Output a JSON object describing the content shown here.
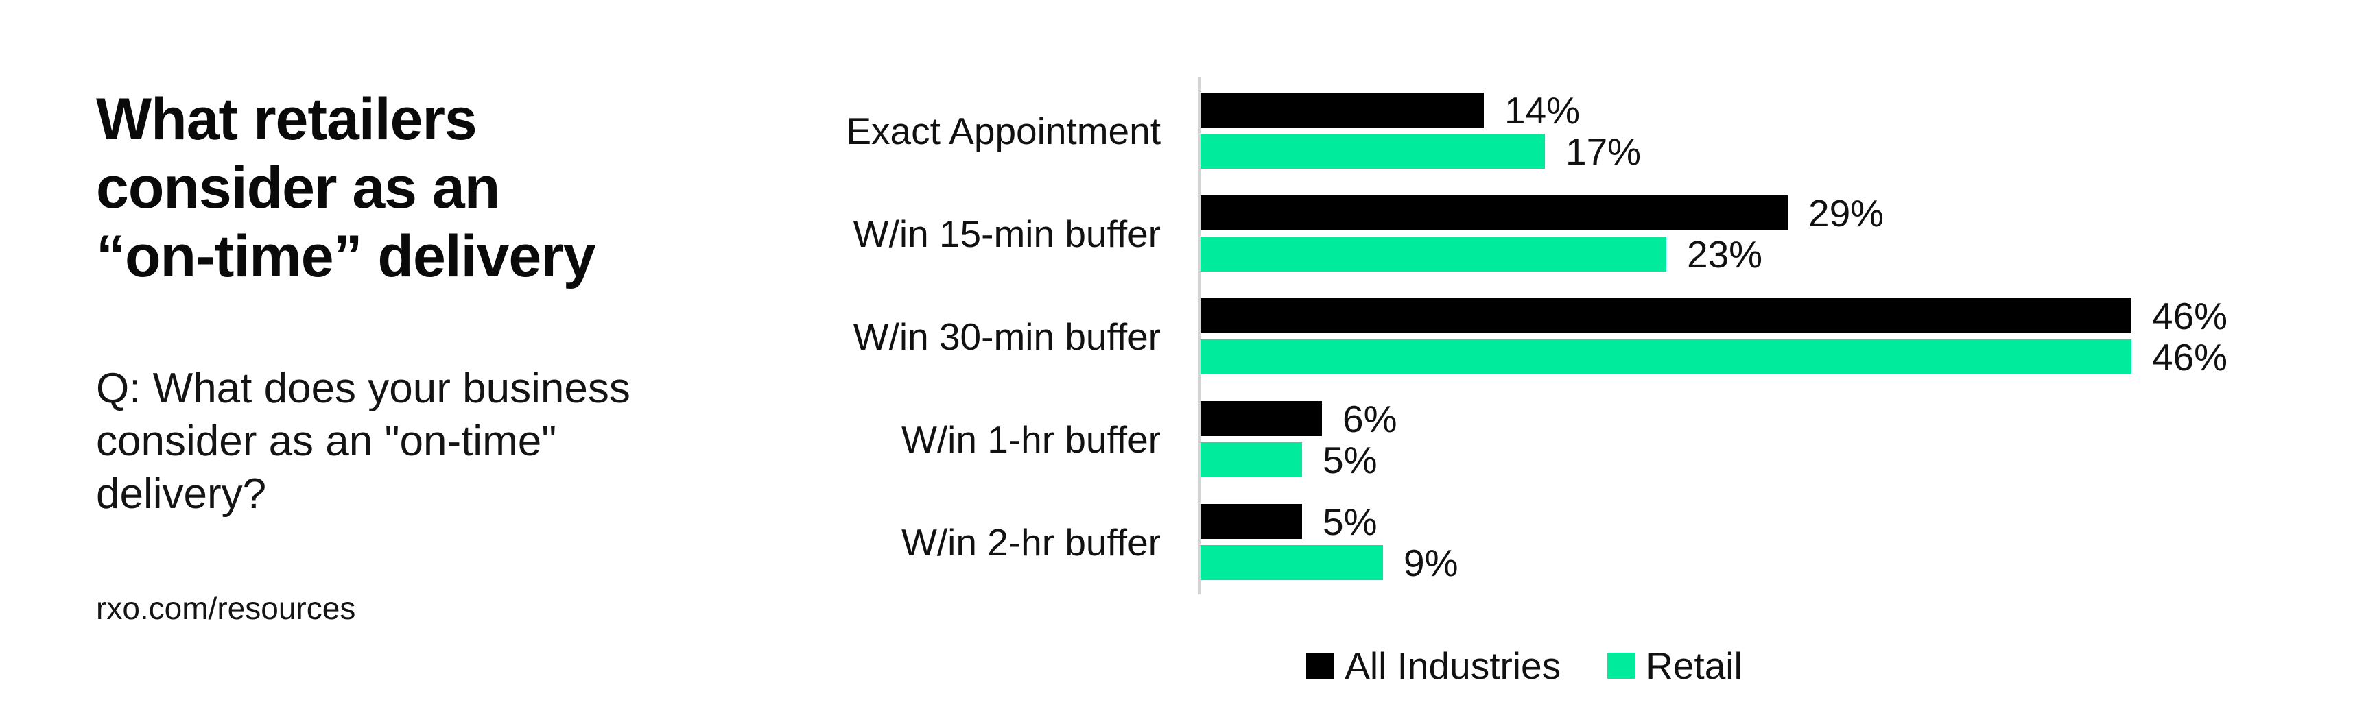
{
  "panel": {
    "title": "What retailers\nconsider as an\n“on-time” delivery",
    "subtitle": "Q: What does your business\nconsider as an \"on-time\"\ndelivery?",
    "footer": "rxo.com/resources"
  },
  "chart_data": {
    "type": "bar",
    "orientation": "horizontal",
    "title": "",
    "xlabel": "",
    "ylabel": "",
    "xlim": [
      0,
      50
    ],
    "grid": false,
    "legend_position": "bottom",
    "axis_color": "#d4d4d4",
    "value_suffix": "%",
    "categories": [
      "Exact Appointment",
      "W/in 15-min buffer",
      "W/in 30-min buffer",
      "W/in 1-hr buffer",
      "W/in 2-hr buffer"
    ],
    "series": [
      {
        "name": "All Industries",
        "color": "#000000",
        "values": [
          14,
          29,
          46,
          6,
          5
        ]
      },
      {
        "name": "Retail",
        "color": "#00eb9b",
        "values": [
          17,
          23,
          46,
          5,
          9
        ]
      }
    ]
  }
}
